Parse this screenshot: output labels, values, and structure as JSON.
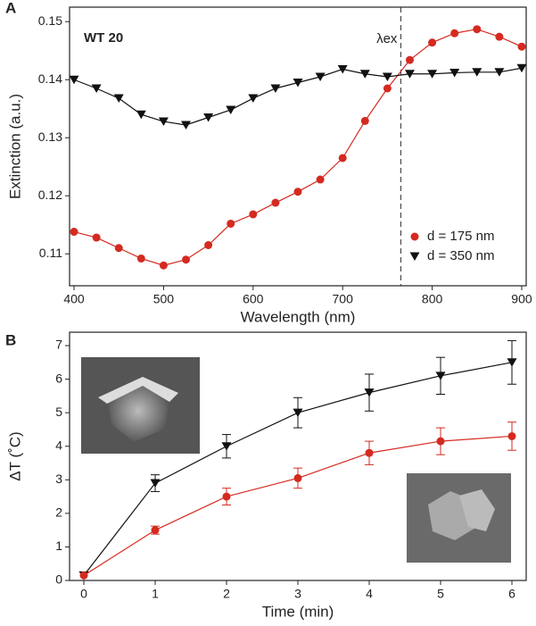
{
  "chart_data": [
    {
      "type": "line",
      "panel": "A",
      "xlabel": "Wavelength (nm)",
      "ylabel": "Extinction (a.u.)",
      "annotations": [
        "WT 20",
        "λex"
      ],
      "vline": 765,
      "xlim": [
        395,
        905
      ],
      "ylim": [
        0.1045,
        0.1525
      ],
      "xticks": [
        400,
        500,
        600,
        700,
        800,
        900
      ],
      "yticks": [
        0.11,
        0.12,
        0.13,
        0.14,
        0.15
      ],
      "legend": "lower right",
      "x": [
        400,
        425,
        450,
        475,
        500,
        525,
        550,
        575,
        600,
        625,
        650,
        675,
        700,
        725,
        750,
        775,
        800,
        825,
        850,
        875,
        900
      ],
      "series": [
        {
          "name": "d = 175 nm",
          "color": "#d42a20",
          "marker": "circle",
          "values": [
            0.1138,
            0.1128,
            0.111,
            0.1092,
            0.108,
            0.109,
            0.1115,
            0.1152,
            0.1168,
            0.1188,
            0.1207,
            0.1228,
            0.1265,
            0.1329,
            0.1385,
            0.1434,
            0.1464,
            0.148,
            0.1487,
            0.1474,
            0.1457
          ]
        },
        {
          "name": "d = 350 nm",
          "color": "#111111",
          "marker": "triangle",
          "values": [
            0.14,
            0.1385,
            0.1368,
            0.134,
            0.1328,
            0.1322,
            0.1335,
            0.1348,
            0.1368,
            0.1385,
            0.1395,
            0.1405,
            0.1418,
            0.141,
            0.1405,
            0.141,
            0.141,
            0.1412,
            0.1413,
            0.1413,
            0.142
          ]
        }
      ]
    },
    {
      "type": "line",
      "panel": "B",
      "xlabel": "Time (min)",
      "ylabel": "ΔT (˚C)",
      "xlim": [
        -0.2,
        6.2
      ],
      "ylim": [
        0,
        7.4
      ],
      "xticks": [
        0,
        1,
        2,
        3,
        4,
        5,
        6
      ],
      "yticks": [
        0,
        1,
        2,
        3,
        4,
        5,
        6,
        7
      ],
      "x": [
        0,
        1,
        2,
        3,
        4,
        5,
        6
      ],
      "series": [
        {
          "color": "#111111",
          "marker": "triangle",
          "values": [
            0.15,
            2.9,
            4.0,
            5.0,
            5.6,
            6.1,
            6.5
          ],
          "errors": [
            0,
            0.25,
            0.35,
            0.45,
            0.55,
            0.55,
            0.65
          ]
        },
        {
          "color": "#d42a20",
          "marker": "circle",
          "values": [
            0.15,
            1.5,
            2.5,
            3.05,
            3.8,
            4.15,
            4.3
          ],
          "errors": [
            0,
            0.12,
            0.25,
            0.3,
            0.35,
            0.4,
            0.42
          ]
        }
      ]
    }
  ]
}
